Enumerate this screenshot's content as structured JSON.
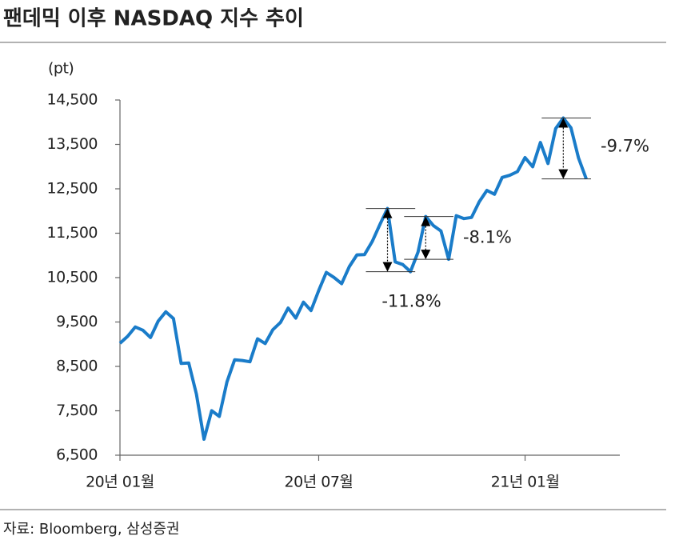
{
  "title": "팬데믹 이후 NASDAQ 지수 추이",
  "source": "자료: Bloomberg, 삼성증권",
  "chart_data": {
    "type": "line",
    "y_label": "(pt)",
    "categories": [
      "20년 01월",
      null,
      null,
      null,
      null,
      null,
      null,
      null,
      null,
      null,
      null,
      null,
      null,
      null,
      null,
      null,
      null,
      null,
      null,
      null,
      null,
      null,
      null,
      null,
      null,
      null,
      "20년 07월",
      null,
      null,
      null,
      null,
      null,
      null,
      null,
      null,
      null,
      null,
      null,
      null,
      null,
      null,
      null,
      null,
      null,
      null,
      null,
      null,
      null,
      null,
      null,
      null,
      null,
      null,
      "21년 01월",
      null,
      null,
      null,
      null,
      null,
      null,
      null,
      null
    ],
    "values": [
      9020,
      9178,
      9388,
      9314,
      9150,
      9520,
      9731,
      9576,
      8567,
      8575,
      7875,
      6860,
      7502,
      7373,
      8153,
      8650,
      8634,
      8605,
      9121,
      9015,
      9325,
      9490,
      9814,
      9589,
      9946,
      9757,
      10208,
      10617,
      10503,
      10363,
      10745,
      11011,
      11019,
      11312,
      11695,
      12056,
      10854,
      10793,
      10633,
      11075,
      11876,
      11672,
      11548,
      10912,
      11895,
      11829,
      11855,
      12206,
      12464,
      12377,
      12756,
      12805,
      12888,
      13202,
      12998,
      13543,
      13070,
      13856,
      14095,
      13874,
      13192,
      12723
    ],
    "color": "#1a7cc9",
    "ylim": [
      6500,
      14500
    ],
    "yticks": [
      {
        "value": 6500,
        "label": "6,500"
      },
      {
        "value": 7500,
        "label": "7,500"
      },
      {
        "value": 8500,
        "label": "8,500"
      },
      {
        "value": 9500,
        "label": "9,500"
      },
      {
        "value": 10500,
        "label": "10,500"
      },
      {
        "value": 11500,
        "label": "11,500"
      },
      {
        "value": 12500,
        "label": "12,500"
      },
      {
        "value": 13500,
        "label": "13,500"
      },
      {
        "value": 14500,
        "label": "14,500"
      }
    ],
    "annotations": [
      "-11.8%",
      "-8.1%",
      "-9.7%"
    ]
  }
}
